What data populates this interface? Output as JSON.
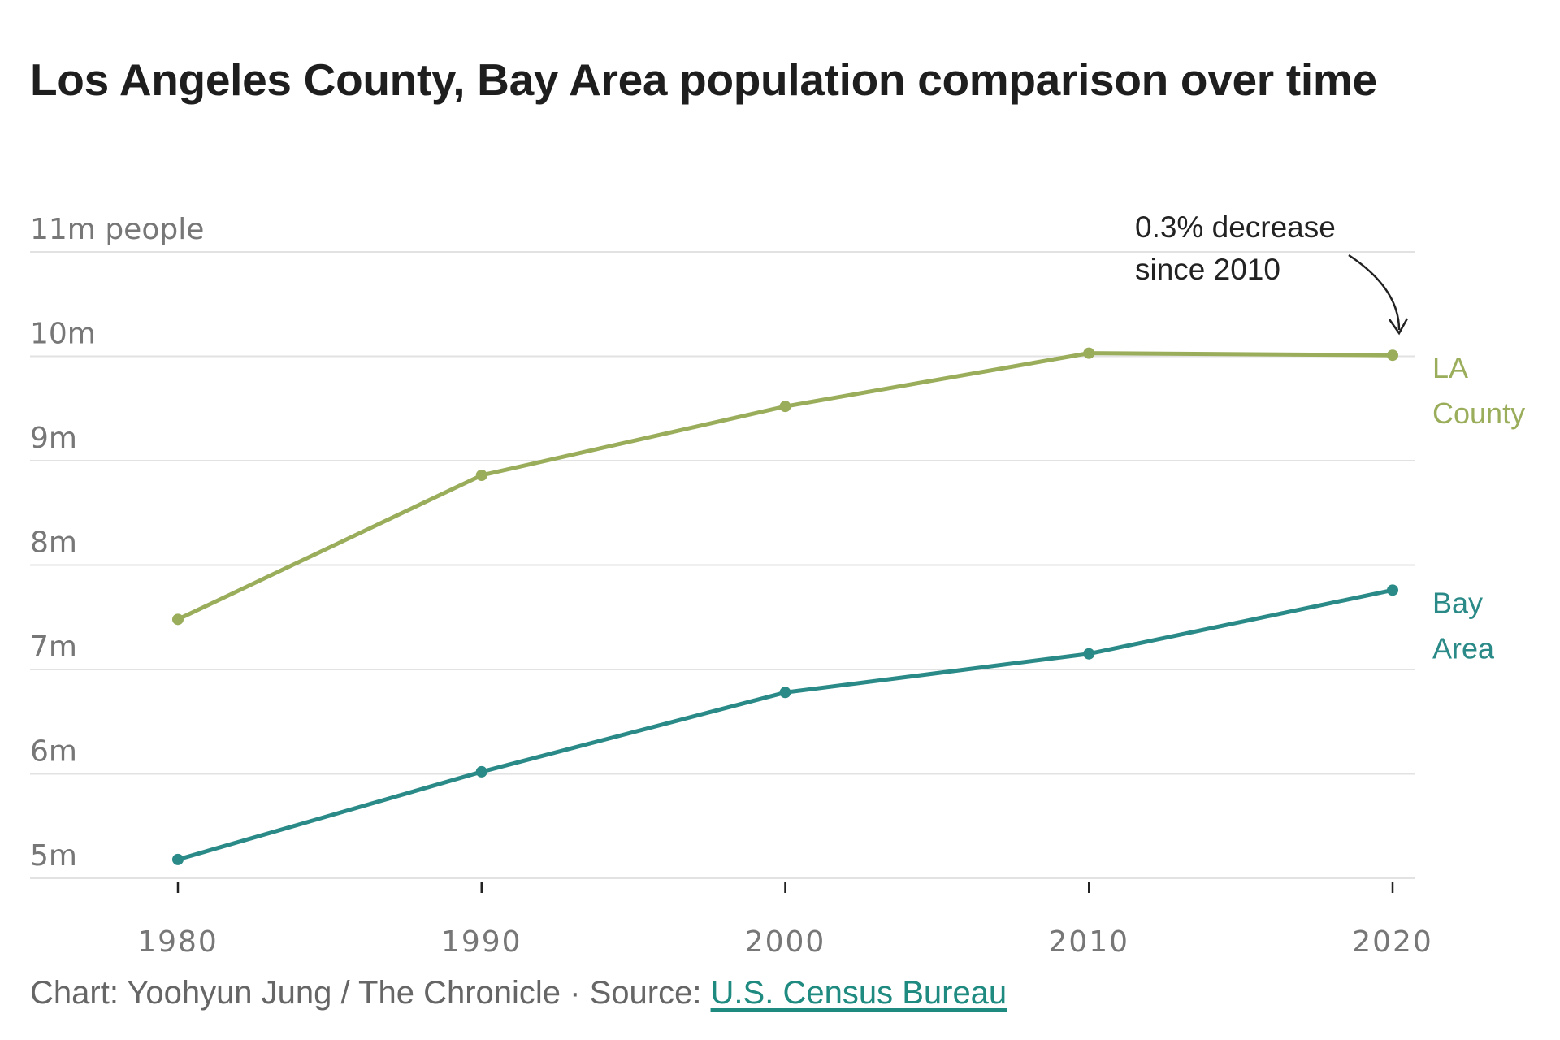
{
  "title": "Los Angeles County, Bay Area population comparison over time",
  "footer": {
    "credit": "Chart: Yoohyun Jung / The Chronicle · Source: ",
    "source_link": "U.S. Census Bureau"
  },
  "chart_data": {
    "type": "line",
    "title": "Los Angeles County, Bay Area population comparison over time",
    "xlabel": "",
    "ylabel": "",
    "x": [
      1980,
      1990,
      2000,
      2010,
      2020
    ],
    "x_tick_labels": [
      "1980",
      "1990",
      "2000",
      "2010",
      "2020"
    ],
    "ylim": [
      5,
      11
    ],
    "y_ticks": [
      5,
      6,
      7,
      8,
      9,
      10,
      11
    ],
    "y_tick_labels": [
      "5m",
      "6m",
      "7m",
      "8m",
      "9m",
      "10m",
      "11m people"
    ],
    "grid": "horizontal",
    "legend": "direct labels at line ends",
    "series": [
      {
        "name": "LA County",
        "label_lines": [
          "LA",
          "County"
        ],
        "color": "#9aad5b",
        "values": [
          7.48,
          8.86,
          9.52,
          10.03,
          10.01
        ]
      },
      {
        "name": "Bay Area",
        "label_lines": [
          "Bay",
          "Area"
        ],
        "color": "#2a8a87",
        "values": [
          5.18,
          6.02,
          6.78,
          7.15,
          7.76
        ]
      }
    ],
    "annotations": [
      {
        "lines": [
          "0.3% decrease",
          "since 2010"
        ],
        "x": 2020,
        "series": "LA County"
      }
    ]
  }
}
